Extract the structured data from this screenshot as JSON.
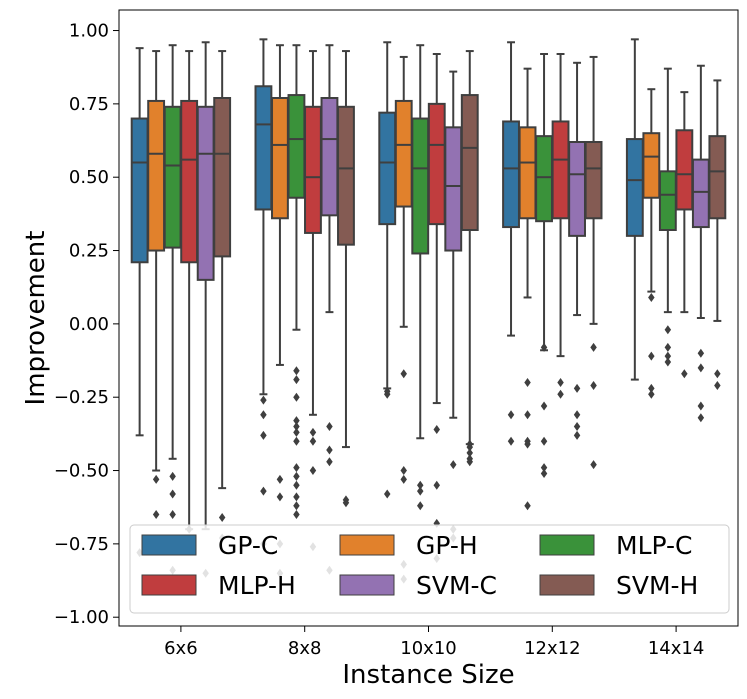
{
  "chart_data": {
    "type": "box",
    "title": "",
    "xlabel": "Instance Size",
    "ylabel": "Improvement",
    "ylim": [
      -1.03,
      1.07
    ],
    "yticks": [
      1.0,
      0.75,
      0.5,
      0.25,
      0.0,
      -0.25,
      -0.5,
      -0.75,
      -1.0
    ],
    "ytick_labels": [
      "1.00",
      "0.75",
      "0.50",
      "0.25",
      "0.00",
      "−0.25",
      "−0.50",
      "−0.75",
      "−1.00"
    ],
    "categories": [
      "6x6",
      "8x8",
      "10x10",
      "12x12",
      "14x14"
    ],
    "legend": {
      "location": "lower center",
      "columns": 3
    },
    "series": [
      {
        "name": "GP-C",
        "color": "#3274a1",
        "boxes": [
          {
            "whislo": -0.38,
            "q1": 0.21,
            "med": 0.55,
            "q3": 0.7,
            "whishi": 0.94,
            "fliers": [
              -0.78
            ]
          },
          {
            "whislo": -0.24,
            "q1": 0.39,
            "med": 0.68,
            "q3": 0.81,
            "whishi": 0.97,
            "fliers": [
              -0.26,
              -0.31,
              -0.38,
              -0.57,
              -0.75
            ]
          },
          {
            "whislo": -0.22,
            "q1": 0.34,
            "med": 0.55,
            "q3": 0.72,
            "whishi": 0.96,
            "fliers": [
              -0.23,
              -0.24,
              -0.58
            ]
          },
          {
            "whislo": -0.04,
            "q1": 0.33,
            "med": 0.53,
            "q3": 0.69,
            "whishi": 0.96,
            "fliers": [
              -0.31,
              -0.4
            ]
          },
          {
            "whislo": -0.19,
            "q1": 0.3,
            "med": 0.49,
            "q3": 0.63,
            "whishi": 0.97,
            "fliers": []
          }
        ]
      },
      {
        "name": "GP-H",
        "color": "#e1812c",
        "boxes": [
          {
            "whislo": -0.5,
            "q1": 0.25,
            "med": 0.58,
            "q3": 0.76,
            "whishi": 0.93,
            "fliers": [
              -0.53,
              -0.65,
              -0.76
            ]
          },
          {
            "whislo": -0.14,
            "q1": 0.36,
            "med": 0.61,
            "q3": 0.77,
            "whishi": 0.95,
            "fliers": [
              -0.53,
              -0.59,
              -0.75,
              -0.85
            ]
          },
          {
            "whislo": -0.01,
            "q1": 0.4,
            "med": 0.61,
            "q3": 0.76,
            "whishi": 0.91,
            "fliers": [
              -0.17,
              -0.5,
              -0.53,
              -0.82,
              -0.87
            ]
          },
          {
            "whislo": 0.09,
            "q1": 0.36,
            "med": 0.55,
            "q3": 0.67,
            "whishi": 0.87,
            "fliers": [
              -0.2,
              -0.31,
              -0.4,
              -0.41,
              -0.62
            ]
          },
          {
            "whislo": 0.11,
            "q1": 0.43,
            "med": 0.57,
            "q3": 0.65,
            "whishi": 0.8,
            "fliers": [
              0.09,
              -0.11,
              -0.22,
              -0.24
            ]
          }
        ]
      },
      {
        "name": "MLP-C",
        "color": "#3a923a",
        "boxes": [
          {
            "whislo": -0.46,
            "q1": 0.26,
            "med": 0.54,
            "q3": 0.74,
            "whishi": 0.95,
            "fliers": [
              -0.52,
              -0.58,
              -0.65,
              -0.84
            ]
          },
          {
            "whislo": -0.02,
            "q1": 0.43,
            "med": 0.63,
            "q3": 0.78,
            "whishi": 0.95,
            "fliers": [
              -0.16,
              -0.19,
              -0.25,
              -0.33,
              -0.35,
              -0.37,
              -0.4,
              -0.49,
              -0.52,
              -0.55,
              -0.59,
              -0.62,
              -0.65
            ]
          },
          {
            "whislo": -0.39,
            "q1": 0.24,
            "med": 0.53,
            "q3": 0.7,
            "whishi": 0.95,
            "fliers": [
              -0.55,
              -0.57,
              -0.62
            ]
          },
          {
            "whislo": -0.09,
            "q1": 0.35,
            "med": 0.5,
            "q3": 0.64,
            "whishi": 0.92,
            "fliers": [
              -0.08,
              -0.28,
              -0.4,
              -0.49,
              -0.51
            ]
          },
          {
            "whislo": 0.04,
            "q1": 0.32,
            "med": 0.44,
            "q3": 0.52,
            "whishi": 0.87,
            "fliers": [
              -0.02,
              -0.08,
              -0.11,
              -0.13
            ]
          }
        ]
      },
      {
        "name": "MLP-H",
        "color": "#c03d3e",
        "boxes": [
          {
            "whislo": -0.7,
            "q1": 0.21,
            "med": 0.56,
            "q3": 0.76,
            "whishi": 0.93,
            "fliers": [
              -0.7
            ]
          },
          {
            "whislo": -0.31,
            "q1": 0.31,
            "med": 0.5,
            "q3": 0.74,
            "whishi": 0.93,
            "fliers": [
              -0.37,
              -0.4,
              -0.5,
              -0.76
            ]
          },
          {
            "whislo": -0.27,
            "q1": 0.34,
            "med": 0.61,
            "q3": 0.75,
            "whishi": 0.92,
            "fliers": [
              -0.36,
              -0.55,
              -0.68,
              -0.8
            ]
          },
          {
            "whislo": -0.11,
            "q1": 0.36,
            "med": 0.56,
            "q3": 0.69,
            "whishi": 0.92,
            "fliers": [
              -0.2,
              -0.24
            ]
          },
          {
            "whislo": 0.04,
            "q1": 0.39,
            "med": 0.51,
            "q3": 0.66,
            "whishi": 0.79,
            "fliers": [
              -0.17
            ]
          }
        ]
      },
      {
        "name": "SVM-C",
        "color": "#9372b2",
        "boxes": [
          {
            "whislo": -0.7,
            "q1": 0.15,
            "med": 0.58,
            "q3": 0.74,
            "whishi": 0.96,
            "fliers": [
              -0.85
            ]
          },
          {
            "whislo": 0.04,
            "q1": 0.37,
            "med": 0.63,
            "q3": 0.77,
            "whishi": 0.95,
            "fliers": [
              -0.35,
              -0.43,
              -0.47,
              -0.84
            ]
          },
          {
            "whislo": -0.32,
            "q1": 0.25,
            "med": 0.47,
            "q3": 0.67,
            "whishi": 0.86,
            "fliers": [
              -0.48,
              -0.7,
              -0.73
            ]
          },
          {
            "whislo": 0.03,
            "q1": 0.3,
            "med": 0.51,
            "q3": 0.62,
            "whishi": 0.89,
            "fliers": [
              -0.22,
              -0.31,
              -0.35,
              -0.38
            ]
          },
          {
            "whislo": 0.02,
            "q1": 0.33,
            "med": 0.45,
            "q3": 0.56,
            "whishi": 0.88,
            "fliers": [
              -0.1,
              -0.15,
              -0.28,
              -0.32
            ]
          }
        ]
      },
      {
        "name": "SVM-H",
        "color": "#845b53",
        "boxes": [
          {
            "whislo": -0.56,
            "q1": 0.23,
            "med": 0.58,
            "q3": 0.77,
            "whishi": 0.93,
            "fliers": [
              -0.66,
              -0.73
            ]
          },
          {
            "whislo": -0.42,
            "q1": 0.27,
            "med": 0.53,
            "q3": 0.74,
            "whishi": 0.93,
            "fliers": [
              -0.6,
              -0.61
            ]
          },
          {
            "whislo": -0.41,
            "q1": 0.32,
            "med": 0.6,
            "q3": 0.78,
            "whishi": 0.93,
            "fliers": [
              -0.41,
              -0.42,
              -0.44,
              -0.46,
              -0.47
            ]
          },
          {
            "whislo": 0.0,
            "q1": 0.36,
            "med": 0.53,
            "q3": 0.62,
            "whishi": 0.91,
            "fliers": [
              -0.08,
              -0.21,
              -0.48
            ]
          },
          {
            "whislo": 0.01,
            "q1": 0.36,
            "med": 0.52,
            "q3": 0.64,
            "whishi": 0.83,
            "fliers": [
              -0.17,
              -0.21
            ]
          }
        ]
      }
    ]
  }
}
